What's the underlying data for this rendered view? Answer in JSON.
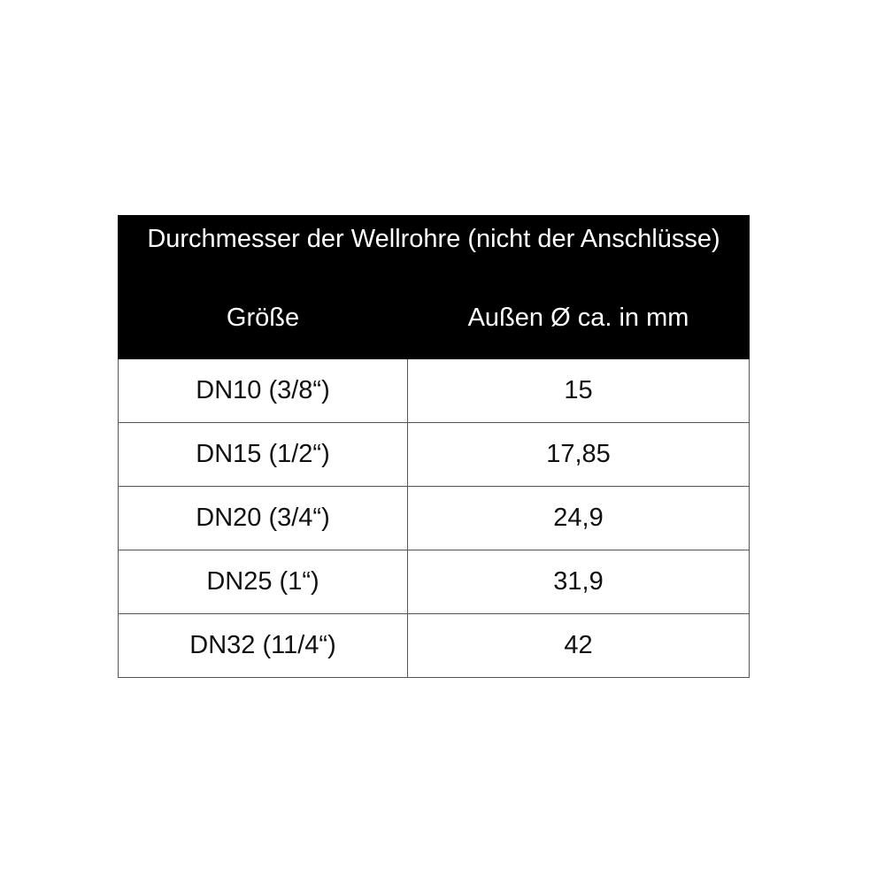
{
  "table": {
    "title": "Durchmesser der Wellrohre (nicht der Anschlüsse)",
    "columns": [
      "Größe",
      "Außen Ø ca. in mm"
    ],
    "rows": [
      [
        "DN10 (3/8“)",
        "15"
      ],
      [
        "DN15 (1/2“)",
        "17,85"
      ],
      [
        "DN20 (3/4“)",
        "24,9"
      ],
      [
        "DN25 (1“)",
        "31,9"
      ],
      [
        "DN32 (11/4“)",
        "42"
      ]
    ]
  },
  "colors": {
    "header_bg": "#000000",
    "header_text": "#ffffff",
    "border": "#555555"
  }
}
